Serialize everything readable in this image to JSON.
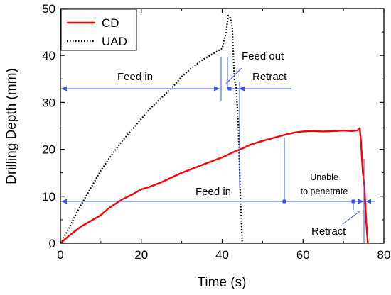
{
  "chart_data": {
    "type": "line",
    "xlabel": "Time (s)",
    "ylabel": "Drilling Depth (mm)",
    "xlim": [
      0,
      80
    ],
    "ylim": [
      0,
      50
    ],
    "xticks": [
      "0",
      "20",
      "40",
      "60",
      "80"
    ],
    "yticks": [
      "0",
      "10",
      "20",
      "30",
      "40",
      "50"
    ],
    "grid": false,
    "legend_position": "top-left",
    "series": [
      {
        "name": "CD",
        "color": "#ff0000",
        "style": "solid",
        "x": [
          0,
          2,
          5,
          8,
          10,
          12,
          15,
          18,
          20,
          22,
          25,
          28,
          30,
          33,
          36,
          40,
          43,
          45,
          47,
          50,
          53,
          56,
          58,
          60,
          62,
          65,
          68,
          70,
          72,
          73.5,
          74,
          74.3,
          74.8,
          75.2,
          75.6,
          76
        ],
        "y": [
          0,
          1.5,
          3.5,
          5,
          6,
          7.5,
          9.2,
          10.5,
          11.5,
          12,
          13,
          14.2,
          15,
          16,
          17,
          18.3,
          19.5,
          20.2,
          21,
          21.8,
          22.5,
          23.2,
          23.6,
          23.8,
          23.9,
          23.8,
          23.9,
          24,
          23.9,
          24,
          24.5,
          22,
          15,
          12,
          5,
          0
        ]
      },
      {
        "name": "UAD",
        "color": "#000000",
        "style": "dotted",
        "x": [
          0,
          2,
          4,
          6,
          8,
          10,
          12,
          15,
          18,
          20,
          22,
          25,
          28,
          30,
          32,
          35,
          38,
          40,
          41,
          41.5,
          42,
          42.5,
          43,
          43.5,
          44,
          44.5,
          45
        ],
        "y": [
          0,
          3,
          6.5,
          9.5,
          12.5,
          15.5,
          18,
          21.5,
          24.5,
          26.5,
          28.5,
          31,
          33.5,
          35.5,
          37,
          39,
          40.5,
          41.5,
          45,
          48.5,
          48,
          46,
          35,
          33,
          25,
          10,
          0
        ]
      }
    ],
    "annotations": {
      "uad_feed_in": "Feed in",
      "uad_feed_out": "Feed out",
      "uad_retract": "Retract",
      "cd_feed_in": "Feed in",
      "cd_unable": [
        "Unable",
        "to penetrate"
      ],
      "cd_retract": "Retract"
    }
  }
}
